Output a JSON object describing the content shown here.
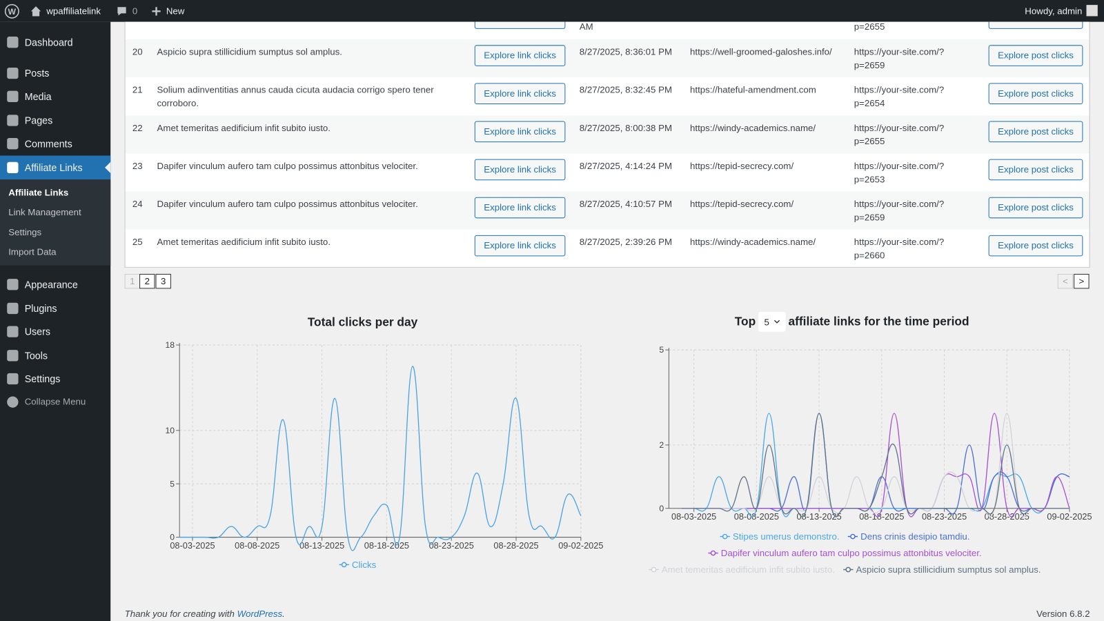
{
  "admin_bar": {
    "site": "wpaffiliatelink",
    "comments": "0",
    "new": "New",
    "howdy": "Howdy, admin"
  },
  "menu": [
    "Dashboard",
    "Posts",
    "Media",
    "Pages",
    "Comments",
    "Affiliate Links",
    "Appearance",
    "Plugins",
    "Users",
    "Tools",
    "Settings",
    "Collapse Menu"
  ],
  "submenu": [
    "Affiliate Links",
    "Link Management",
    "Settings",
    "Import Data"
  ],
  "table": {
    "partial_row": {
      "date": "AM",
      "post": "p=2655"
    },
    "rows": [
      {
        "id": "20",
        "title": "Aspicio supra stillicidium sumptus sol amplus.",
        "link_button": "Explore link clicks",
        "date": "8/27/2025, 8:36:01 PM",
        "url": "https://well-groomed-galoshes.info/",
        "post": "https://your-site.com/?p=2659",
        "post_button": "Explore post clicks"
      },
      {
        "id": "21",
        "title": "Solium adinventitias annus cauda cicuta audacia corrigo spero tener corroboro.",
        "link_button": "Explore link clicks",
        "date": "8/27/2025, 8:32:45 PM",
        "url": "https://hateful-amendment.com",
        "post": "https://your-site.com/?p=2654",
        "post_button": "Explore post clicks"
      },
      {
        "id": "22",
        "title": "Amet temeritas aedificium infit subito iusto.",
        "link_button": "Explore link clicks",
        "date": "8/27/2025, 8:00:38 PM",
        "url": "https://windy-academics.name/",
        "post": "https://your-site.com/?p=2655",
        "post_button": "Explore post clicks"
      },
      {
        "id": "23",
        "title": "Dapifer vinculum aufero tam culpo possimus attonbitus velociter.",
        "link_button": "Explore link clicks",
        "date": "8/27/2025, 4:14:24 PM",
        "url": "https://tepid-secrecy.com/",
        "post": "https://your-site.com/?p=2653",
        "post_button": "Explore post clicks"
      },
      {
        "id": "24",
        "title": "Dapifer vinculum aufero tam culpo possimus attonbitus velociter.",
        "link_button": "Explore link clicks",
        "date": "8/27/2025, 4:10:57 PM",
        "url": "https://tepid-secrecy.com/",
        "post": "https://your-site.com/?p=2659",
        "post_button": "Explore post clicks"
      },
      {
        "id": "25",
        "title": "Amet temeritas aedificium infit subito iusto.",
        "link_button": "Explore link clicks",
        "date": "8/27/2025, 2:39:26 PM",
        "url": "https://windy-academics.name/",
        "post": "https://your-site.com/?p=2660",
        "post_button": "Explore post clicks"
      }
    ]
  },
  "pagination": {
    "pages": [
      "1",
      "2",
      "3"
    ],
    "prev": "<",
    "next": ">"
  },
  "chart_data": [
    {
      "type": "line",
      "title": "Total clicks per day",
      "x": [
        "08-02-2025",
        "08-03-2025",
        "08-04-2025",
        "08-05-2025",
        "08-06-2025",
        "08-07-2025",
        "08-08-2025",
        "08-09-2025",
        "08-10-2025",
        "08-11-2025",
        "08-12-2025",
        "08-13-2025",
        "08-14-2025",
        "08-15-2025",
        "08-16-2025",
        "08-17-2025",
        "08-18-2025",
        "08-19-2025",
        "08-20-2025",
        "08-21-2025",
        "08-22-2025",
        "08-23-2025",
        "08-24-2025",
        "08-25-2025",
        "08-26-2025",
        "08-27-2025",
        "08-28-2025",
        "08-29-2025",
        "08-30-2025",
        "08-31-2025",
        "09-01-2025",
        "09-02-2025"
      ],
      "series": [
        {
          "name": "Clicks",
          "color": "#4ba3e3",
          "values": [
            0,
            0,
            0,
            0,
            1,
            0,
            1,
            2,
            11,
            0,
            1,
            1,
            13,
            0,
            0,
            2,
            3,
            0,
            16,
            1,
            0,
            0,
            2,
            6,
            1,
            5,
            13,
            2,
            1,
            0,
            4,
            2
          ]
        }
      ],
      "xlim": [
        "08-02-2025",
        "09-02-2025"
      ],
      "xticks": [
        "08-03-2025",
        "08-08-2025",
        "08-13-2025",
        "08-18-2025",
        "08-23-2025",
        "08-28-2025",
        "09-02-2025"
      ],
      "ylim": [
        0,
        18
      ],
      "yticks": [
        0,
        5,
        10,
        18
      ],
      "grid": true
    },
    {
      "type": "line",
      "title": "Top",
      "top_n": 5,
      "title_suffix": "affiliate links for the time period",
      "x": [
        "08-02-2025",
        "08-03-2025",
        "08-04-2025",
        "08-05-2025",
        "08-06-2025",
        "08-07-2025",
        "08-08-2025",
        "08-09-2025",
        "08-10-2025",
        "08-11-2025",
        "08-12-2025",
        "08-13-2025",
        "08-14-2025",
        "08-15-2025",
        "08-16-2025",
        "08-17-2025",
        "08-18-2025",
        "08-19-2025",
        "08-20-2025",
        "08-21-2025",
        "08-22-2025",
        "08-23-2025",
        "08-24-2025",
        "08-25-2025",
        "08-26-2025",
        "08-27-2025",
        "08-28-2025",
        "08-29-2025",
        "08-30-2025",
        "08-31-2025",
        "09-01-2025",
        "09-02-2025"
      ],
      "series": [
        {
          "name": "Stipes umerus demonstro.",
          "color": "#4aa8e8",
          "values": [
            0,
            0,
            0,
            1,
            0,
            0,
            0,
            3,
            0,
            0,
            0,
            0,
            0,
            0,
            0,
            0,
            0,
            0,
            0,
            0,
            0,
            0,
            0,
            0,
            0,
            1,
            1,
            1,
            0,
            0,
            1,
            1
          ]
        },
        {
          "name": "Dens crinis desipio tamdiu.",
          "color": "#4a6fd8",
          "values": [
            0,
            0,
            0,
            0,
            0,
            0,
            0,
            0,
            0,
            1,
            0,
            3,
            0,
            0,
            0,
            0,
            1,
            0,
            0,
            0,
            0,
            0,
            0,
            2,
            0,
            1,
            1,
            0,
            0,
            0,
            1,
            1
          ]
        },
        {
          "name": "Dapifer vinculum aufero tam culpo possimus attonbitus velociter.",
          "color": "#a64fd6",
          "values": [
            0,
            0,
            0,
            0,
            0,
            0,
            0,
            0,
            0,
            0,
            0,
            0,
            0,
            0,
            0,
            0,
            0,
            3,
            0,
            0,
            0,
            1,
            1,
            1,
            0,
            3,
            0,
            0,
            0,
            0,
            1,
            0
          ]
        },
        {
          "name": "Amet temeritas aedificium infit subito iusto.",
          "color": "#d0d3d8",
          "values": [
            0,
            0,
            0,
            0,
            0,
            0,
            0,
            1,
            0,
            0,
            0,
            1,
            0,
            0,
            1,
            0,
            0,
            1,
            0,
            0,
            0,
            1,
            1,
            0,
            0,
            0,
            3,
            0,
            0,
            0,
            0,
            0
          ]
        },
        {
          "name": "Aspicio supra stillicidium sumptus sol amplus.",
          "color": "#5f7385",
          "values": [
            0,
            0,
            0,
            0,
            0,
            1,
            0,
            2,
            0,
            0,
            0,
            3,
            0,
            0,
            0,
            0,
            1,
            2,
            0,
            0,
            0,
            0,
            0,
            0,
            0,
            0,
            2,
            0,
            0,
            0,
            0,
            0
          ]
        }
      ],
      "xlim": [
        "08-01-2025",
        "09-02-2025"
      ],
      "xticks": [
        "08-03-2025",
        "08-08-2025",
        "08-13-2025",
        "08-18-2025",
        "08-23-2025",
        "08-28-2025",
        "09-02-2025"
      ],
      "ylim": [
        0,
        5
      ],
      "yticks": [
        0,
        2,
        5
      ],
      "grid": true
    }
  ],
  "footer": {
    "text": "Thank you for creating with",
    "link": "WordPress",
    "text_end": ".",
    "version": "Version 6.8.2"
  }
}
